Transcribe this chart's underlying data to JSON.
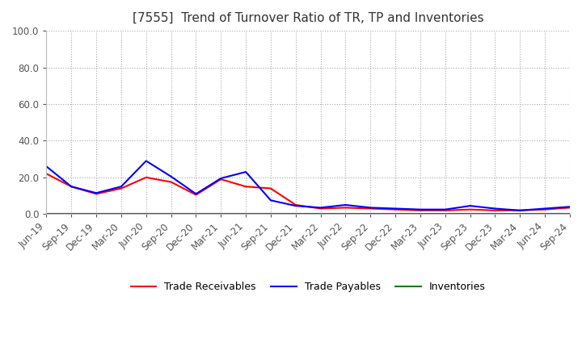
{
  "title": "[7555]  Trend of Turnover Ratio of TR, TP and Inventories",
  "ylim": [
    0,
    100
  ],
  "yticks": [
    0.0,
    20.0,
    40.0,
    60.0,
    80.0,
    100.0
  ],
  "x_labels": [
    "Jun-19",
    "Sep-19",
    "Dec-19",
    "Mar-20",
    "Jun-20",
    "Sep-20",
    "Dec-20",
    "Mar-21",
    "Jun-21",
    "Sep-21",
    "Dec-21",
    "Mar-22",
    "Jun-22",
    "Sep-22",
    "Dec-22",
    "Mar-23",
    "Jun-23",
    "Sep-23",
    "Dec-23",
    "Mar-24",
    "Jun-24",
    "Sep-24"
  ],
  "trade_receivables": [
    22.0,
    15.0,
    11.0,
    14.0,
    20.0,
    17.5,
    10.5,
    19.0,
    15.0,
    14.0,
    5.0,
    3.0,
    3.5,
    3.0,
    2.5,
    2.0,
    2.0,
    2.5,
    2.0,
    2.0,
    2.5,
    3.5
  ],
  "trade_payables": [
    26.0,
    15.0,
    11.5,
    15.0,
    29.0,
    20.5,
    11.0,
    19.5,
    23.0,
    7.5,
    4.5,
    3.5,
    5.0,
    3.5,
    3.0,
    2.5,
    2.5,
    4.5,
    3.0,
    2.0,
    3.0,
    4.0
  ],
  "inventories": [
    0.2,
    0.2,
    0.2,
    0.2,
    0.2,
    0.2,
    0.2,
    0.2,
    0.2,
    0.2,
    0.2,
    0.2,
    0.2,
    0.2,
    0.2,
    0.2,
    0.2,
    0.2,
    0.2,
    0.2,
    0.2,
    0.2
  ],
  "colors": {
    "trade_receivables": "#ff0000",
    "trade_payables": "#0000ff",
    "inventories": "#008000"
  },
  "legend_labels": [
    "Trade Receivables",
    "Trade Payables",
    "Inventories"
  ],
  "background_color": "#ffffff",
  "grid_color": "#aaaaaa",
  "title_fontsize": 11,
  "tick_fontsize": 8.5,
  "legend_fontsize": 9,
  "linewidth": 1.5
}
